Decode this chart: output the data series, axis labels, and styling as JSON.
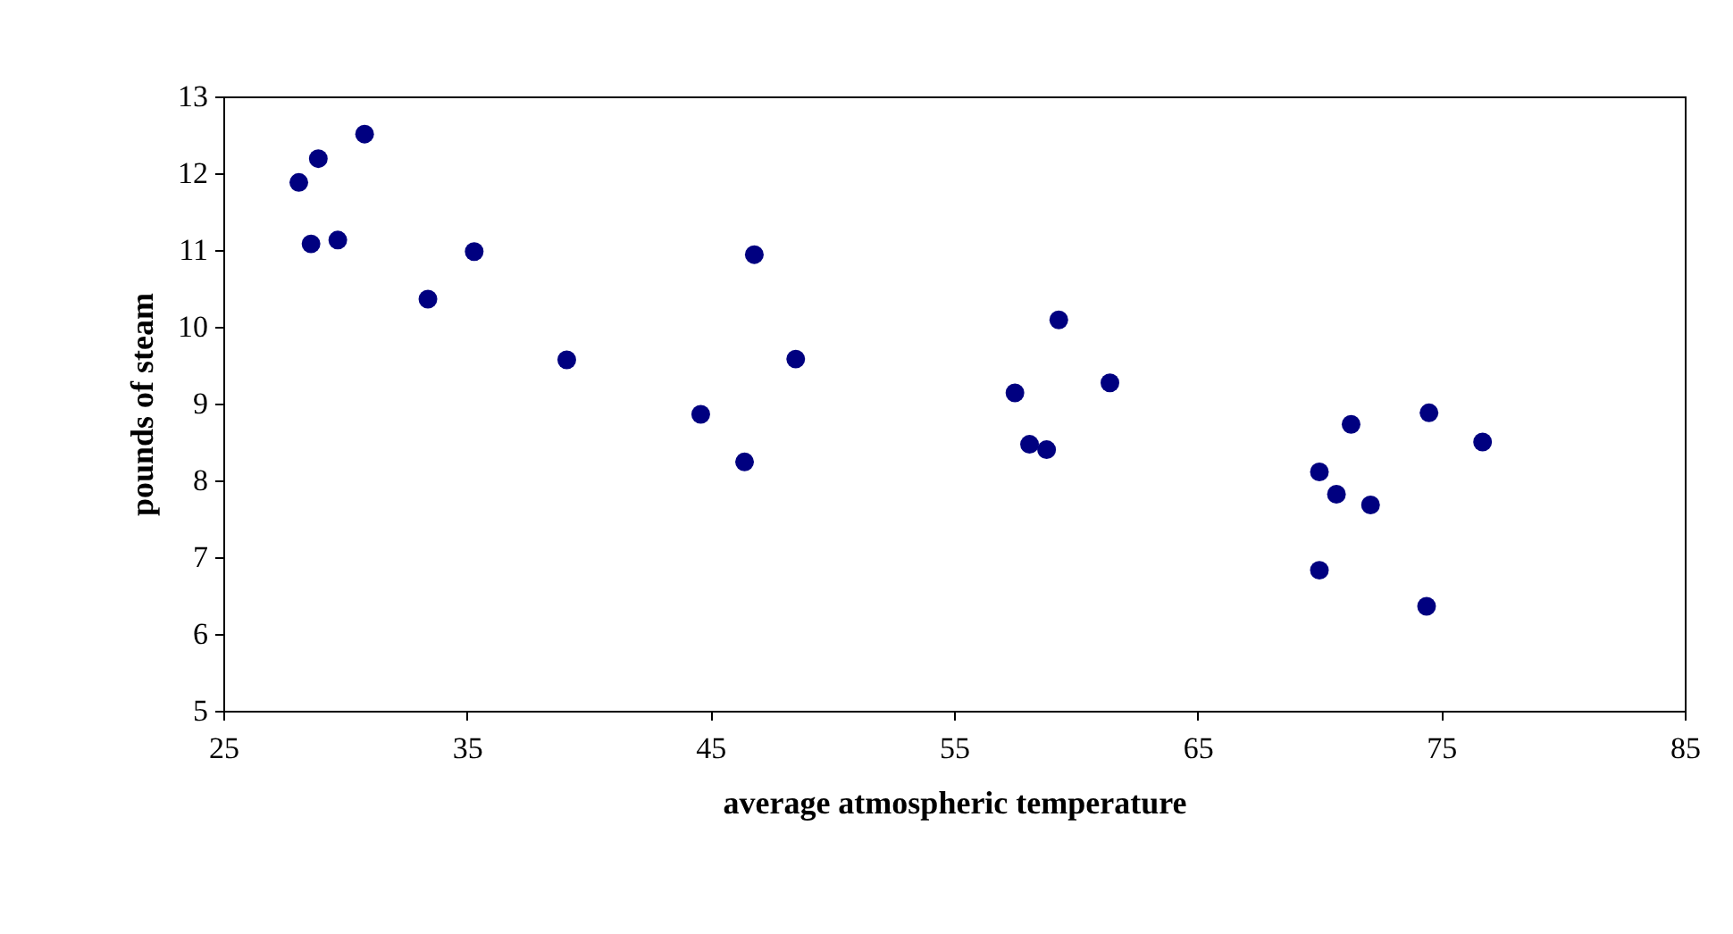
{
  "chart_data": {
    "type": "scatter",
    "xlabel": "average atmospheric temperature",
    "ylabel": "pounds of steam",
    "x": [
      35.3,
      29.7,
      30.8,
      58.8,
      61.4,
      71.3,
      74.4,
      76.7,
      70.7,
      57.5,
      46.4,
      28.9,
      28.1,
      39.1,
      46.8,
      48.5,
      59.3,
      70.0,
      70.0,
      74.5,
      72.1,
      58.1,
      44.6,
      33.4,
      28.6
    ],
    "series": [
      {
        "color": "#000080",
        "values": [
          10.98,
          11.13,
          12.51,
          8.4,
          9.27,
          8.73,
          6.36,
          8.5,
          7.82,
          9.14,
          8.24,
          12.19,
          11.88,
          9.57,
          10.94,
          9.58,
          10.09,
          8.11,
          6.83,
          8.88,
          7.68,
          8.47,
          8.86,
          10.36,
          11.08
        ]
      }
    ],
    "xlim": [
      25,
      85
    ],
    "xticks": [
      25,
      35,
      45,
      55,
      65,
      75,
      85
    ],
    "ylim": [
      5,
      13
    ],
    "yticks": [
      5,
      6,
      7,
      8,
      9,
      10,
      11,
      12,
      13
    ],
    "marker": "circle",
    "grid": false,
    "legend": false
  }
}
